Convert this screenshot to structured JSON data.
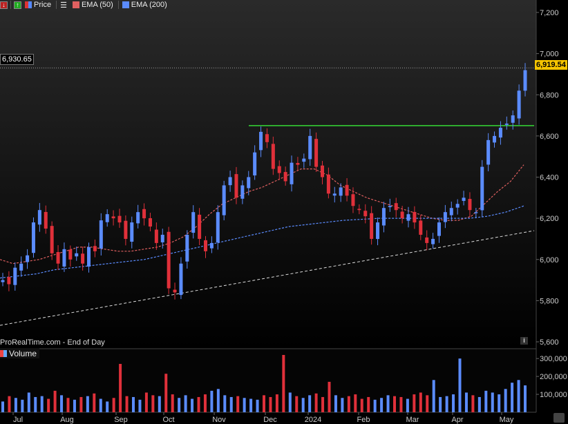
{
  "legend": {
    "price_label": "Price",
    "ema50_label": "EMA (50)",
    "ema200_label": "EMA (200)"
  },
  "source_label": "ProRealTime.com - End of Day",
  "info_icon": "i",
  "volume_label": "Volume",
  "badges": {
    "crosshair_value": "6,930.65",
    "last_price": "6,919.54"
  },
  "colors": {
    "background": "#000000",
    "up_candle": "#5b8cff",
    "down_candle": "#e0303a",
    "ema50": "#e06060",
    "ema200": "#5b8cff",
    "resistance": "#33cc33",
    "trendline": "#dddddd",
    "last_price_badge": "#f5c400"
  },
  "chart_data": [
    {
      "type": "candlestick",
      "x_axis_ticks": [
        "Jul",
        "Aug",
        "Sep",
        "Oct",
        "Nov",
        "Dec",
        "2024",
        "Feb",
        "Mar",
        "Apr",
        "May"
      ],
      "y_axis_ticks": [
        "7,200",
        "7,000",
        "6,800",
        "6,600",
        "6,400",
        "6,200",
        "6,000",
        "5,800",
        "5,600"
      ],
      "ylim": [
        5600,
        7200
      ],
      "grid": false,
      "series": [
        {
          "name": "Price",
          "style": "candles",
          "close_approx": [
            5900,
            5880,
            5960,
            5980,
            6020,
            6180,
            6240,
            6150,
            6030,
            5980,
            6050,
            6000,
            6030,
            5980,
            6060,
            6040,
            6190,
            6220,
            6200,
            6180,
            6100,
            6180,
            6230,
            6200,
            6160,
            6080,
            6120,
            5860,
            5840,
            5980,
            6120,
            6230,
            6100,
            6040,
            6080,
            6230,
            6360,
            6400,
            6300,
            6360,
            6400,
            6520,
            6620,
            6570,
            6440,
            6420,
            6380,
            6470,
            6460,
            6490,
            6600,
            6450,
            6400,
            6320,
            6320,
            6350,
            6310,
            6260,
            6240,
            6210,
            6100,
            6180,
            6250,
            6260,
            6240,
            6200,
            6220,
            6180,
            6120,
            6080,
            6100,
            6180,
            6230,
            6250,
            6270,
            6300,
            6240,
            6230,
            6450,
            6580,
            6600,
            6640,
            6660,
            6700,
            6820,
            6919.54
          ]
        },
        {
          "name": "EMA (50)",
          "style": "dashed",
          "values_approx": [
            6000,
            5980,
            5990,
            6000,
            6020,
            6040,
            6060,
            6060,
            6050,
            6040,
            6040,
            6050,
            6060,
            6080,
            6110,
            6160,
            6220,
            6270,
            6300,
            6330,
            6350,
            6380,
            6410,
            6440,
            6440,
            6410,
            6360,
            6330,
            6300,
            6280,
            6260,
            6240,
            6220,
            6200,
            6190,
            6190,
            6210,
            6270,
            6330,
            6380,
            6460
          ]
        },
        {
          "name": "EMA (200)",
          "style": "dashed",
          "values_approx": [
            5910,
            5920,
            5930,
            5950,
            5960,
            5970,
            5980,
            5990,
            6000,
            6020,
            6040,
            6060,
            6080,
            6100,
            6120,
            6140,
            6160,
            6170,
            6180,
            6190,
            6195,
            6200,
            6200,
            6200,
            6200,
            6200,
            6200,
            6210,
            6230,
            6260
          ]
        }
      ],
      "annotations": [
        {
          "name": "resistance",
          "value": 6650,
          "from": "Nov",
          "to": "May"
        },
        {
          "name": "rising trendline",
          "from_value": 5680,
          "to_value": 6140
        },
        {
          "name": "crosshair",
          "value": 6930.65
        },
        {
          "name": "last",
          "value": 6919.54
        }
      ]
    },
    {
      "type": "bar",
      "name": "Volume",
      "y_axis_ticks": [
        "300,000",
        "200,000",
        "100,000"
      ],
      "ylim": [
        0,
        320000
      ],
      "values_approx": [
        60000,
        90000,
        80000,
        70000,
        110000,
        85000,
        90000,
        75000,
        120000,
        95000,
        80000,
        70000,
        85000,
        90000,
        105000,
        75000,
        60000,
        80000,
        270000,
        90000,
        85000,
        70000,
        110000,
        95000,
        90000,
        215000,
        100000,
        80000,
        95000,
        75000,
        85000,
        100000,
        120000,
        130000,
        95000,
        85000,
        90000,
        80000,
        75000,
        70000,
        95000,
        85000,
        100000,
        320000,
        110000,
        90000,
        80000,
        95000,
        105000,
        85000,
        170000,
        95000,
        80000,
        90000,
        100000,
        75000,
        85000,
        70000,
        80000,
        95000,
        90000,
        85000,
        75000,
        100000,
        110000,
        95000,
        180000,
        85000,
        90000,
        100000,
        300000,
        110000,
        95000,
        85000,
        120000,
        110000,
        100000,
        130000,
        165000,
        180000,
        150000
      ]
    }
  ]
}
